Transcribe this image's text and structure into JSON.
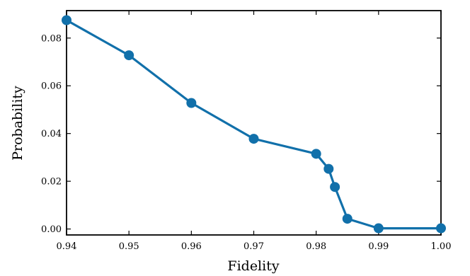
{
  "chart_data": {
    "type": "line",
    "xlabel": "Fidelity",
    "ylabel": "Probability",
    "xlim": [
      0.94,
      1.0
    ],
    "ylim": [
      -0.0025,
      0.0915
    ],
    "xticks": [
      0.94,
      0.95,
      0.96,
      0.97,
      0.98,
      0.99,
      1.0
    ],
    "xtick_labels": [
      "0.94",
      "0.95",
      "0.96",
      "0.97",
      "0.98",
      "0.99",
      "1.00"
    ],
    "yticks": [
      0.0,
      0.02,
      0.04,
      0.06,
      0.08
    ],
    "ytick_labels": [
      "0.00",
      "0.02",
      "0.04",
      "0.06",
      "0.08"
    ],
    "grid": false,
    "series": [
      {
        "color": "#1170aa",
        "x": [
          0.94,
          0.95,
          0.96,
          0.97,
          0.98,
          0.982,
          0.983,
          0.985,
          0.99,
          1.0
        ],
        "y": [
          0.0875,
          0.0728,
          0.0528,
          0.0378,
          0.0315,
          0.0252,
          0.0176,
          0.0043,
          0.0003,
          0.0003
        ]
      }
    ]
  }
}
